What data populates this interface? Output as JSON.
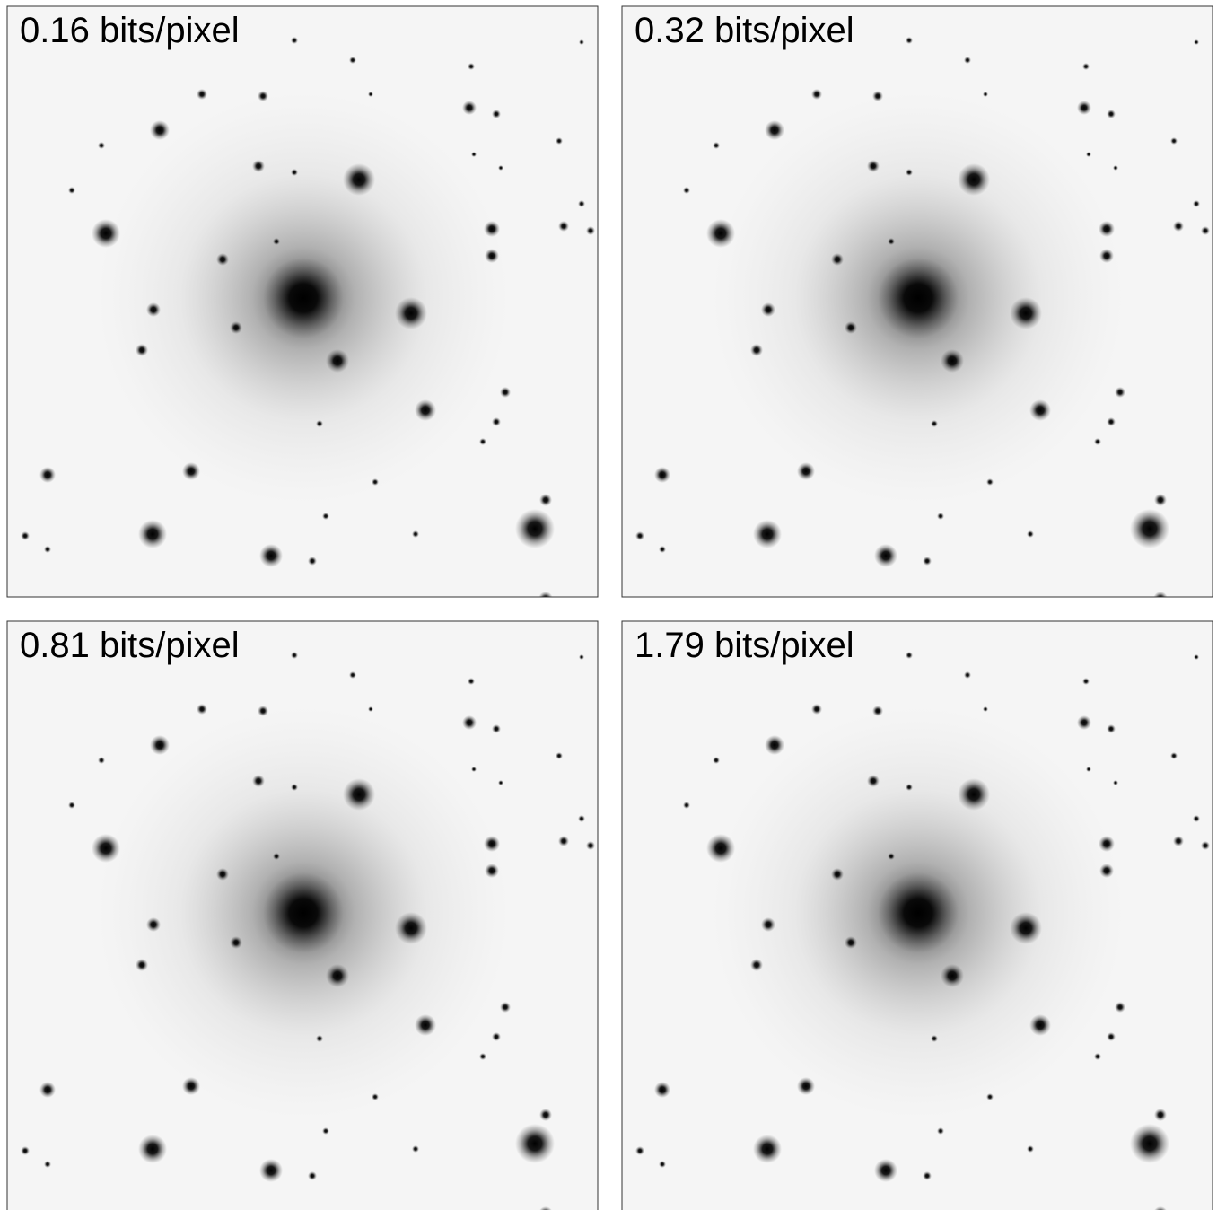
{
  "panels": [
    {
      "label": "0.16 bits/pixel"
    },
    {
      "label": "0.32 bits/pixel"
    },
    {
      "label": "0.81 bits/pixel"
    },
    {
      "label": "1.79 bits/pixel"
    }
  ]
}
